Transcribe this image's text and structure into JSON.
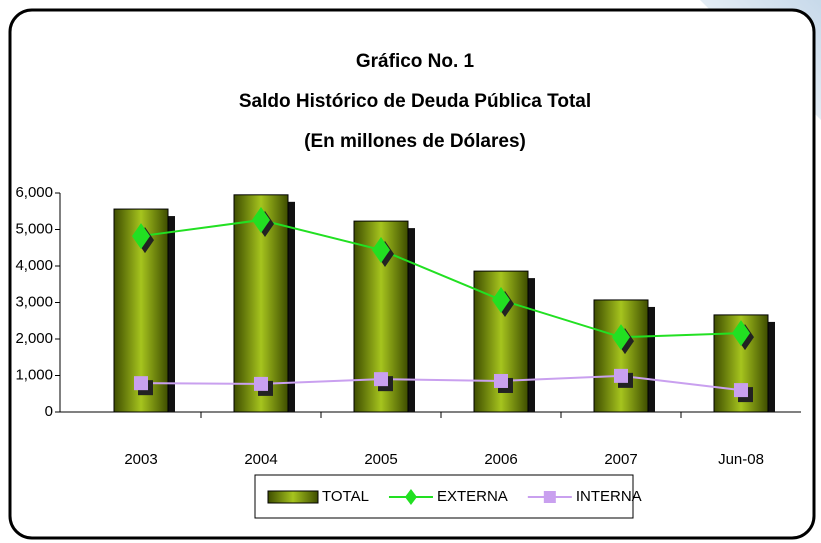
{
  "chart_data": {
    "type": "bar_line",
    "title": "Gráfico No. 1",
    "subtitle": "Saldo Histórico de Deuda Pública Total",
    "subtitle2": "(En millones de Dólares)",
    "categories": [
      "2003",
      "2004",
      "2005",
      "2006",
      "2007",
      "Jun-08"
    ],
    "series": [
      {
        "name": "TOTAL",
        "type": "bar",
        "color": "#7a9a0a",
        "values": [
          5560,
          5950,
          5230,
          3860,
          3070,
          2660
        ]
      },
      {
        "name": "EXTERNA",
        "type": "line",
        "marker": "diamond",
        "color": "#22e022",
        "values": [
          4820,
          5260,
          4440,
          3070,
          2050,
          2160
        ]
      },
      {
        "name": "INTERNA",
        "type": "line",
        "marker": "square",
        "color": "#c9a0ef",
        "values": [
          790,
          770,
          900,
          850,
          990,
          600
        ]
      }
    ],
    "ylim": [
      0,
      6000
    ],
    "yticks": [
      0,
      {
        "value": 1000,
        "label": "1,000"
      },
      {
        "value": 2000,
        "label": "2,000"
      },
      {
        "value": 3000,
        "label": "3,000"
      },
      {
        "value": 4000,
        "label": "4,000"
      },
      {
        "value": 5000,
        "label": "5,000"
      },
      {
        "value": 6000,
        "label": "6,000"
      }
    ],
    "legend": "bottom"
  }
}
